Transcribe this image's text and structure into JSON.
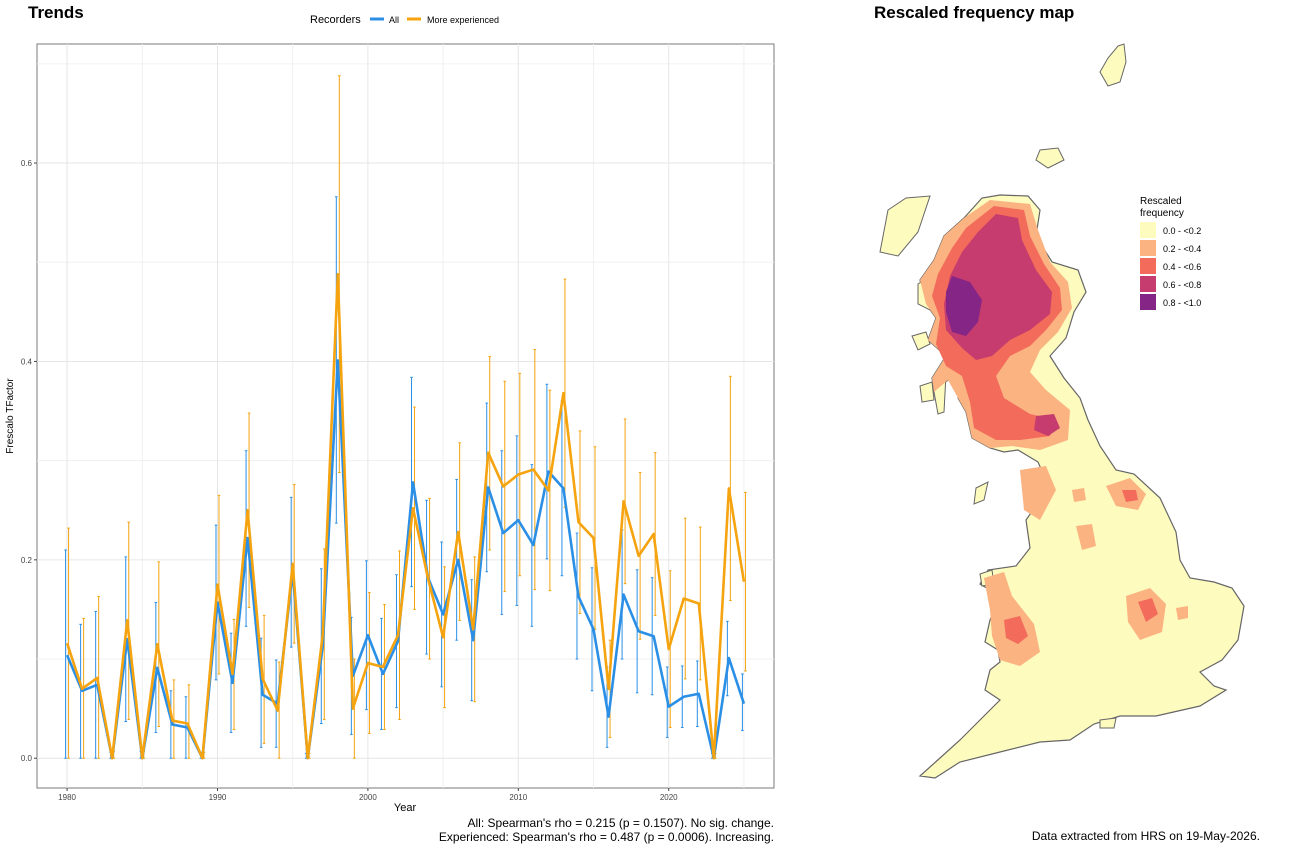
{
  "trends_title": "Trends",
  "map_title": "Rescaled frequency map",
  "notes": {
    "all": "All: Spearman's rho = 0.215 (p = 0.1507). No sig. change.",
    "experienced": "Experienced: Spearman's rho = 0.487 (p = 0.0006). Increasing.",
    "extracted": "Data extracted from HRS on 19-May-2026."
  },
  "map_legend": {
    "title_line1": "Rescaled",
    "title_line2": "frequency",
    "bins": [
      {
        "label": "0.0 - <0.2",
        "color": "#FEFBBF"
      },
      {
        "label": "0.2 - <0.4",
        "color": "#FBB381"
      },
      {
        "label": "0.4 - <0.6",
        "color": "#F26B5B"
      },
      {
        "label": "0.6 - <0.8",
        "color": "#C63C6E"
      },
      {
        "label": "0.8 - <1.0",
        "color": "#852586"
      }
    ]
  },
  "chart_data": {
    "type": "line",
    "title": "Trends",
    "xlabel": "Year",
    "ylabel": "Frescalo TFactor",
    "xlim": [
      1978,
      2027
    ],
    "ylim": [
      -0.03,
      0.72
    ],
    "xticks": [
      1980,
      1990,
      2000,
      2010,
      2020
    ],
    "yticks": [
      0.0,
      0.2,
      0.4,
      0.6
    ],
    "ytick_labels": [
      "0.0",
      "0.2",
      "0.4",
      "0.6"
    ],
    "grid": true,
    "legend_title": "Recorders",
    "legend_position": "top",
    "x": [
      1980,
      1981,
      1982,
      1983,
      1984,
      1985,
      1986,
      1987,
      1988,
      1989,
      1990,
      1991,
      1992,
      1993,
      1994,
      1995,
      1996,
      1997,
      1998,
      1999,
      2000,
      2001,
      2002,
      2003,
      2004,
      2005,
      2006,
      2007,
      2008,
      2009,
      2010,
      2011,
      2012,
      2013,
      2014,
      2015,
      2016,
      2017,
      2018,
      2019,
      2020,
      2021,
      2022,
      2023,
      2024,
      2025
    ],
    "series": [
      {
        "name": "All",
        "color": "#2B8FE6",
        "values": [
          0.104,
          0.068,
          0.074,
          0.0,
          0.12,
          0.0,
          0.091,
          0.034,
          0.031,
          0.0,
          0.157,
          0.076,
          0.222,
          0.064,
          0.055,
          0.188,
          0.0,
          0.113,
          0.401,
          0.083,
          0.124,
          0.085,
          0.118,
          0.278,
          0.182,
          0.145,
          0.2,
          0.119,
          0.273,
          0.227,
          0.24,
          0.215,
          0.289,
          0.272,
          0.163,
          0.13,
          0.042,
          0.165,
          0.128,
          0.123,
          0.052,
          0.062,
          0.065,
          0.0,
          0.101,
          0.055
        ],
        "upper": [
          0.21,
          0.135,
          0.148,
          0.006,
          0.203,
          0.007,
          0.157,
          0.068,
          0.062,
          0.006,
          0.235,
          0.126,
          0.31,
          0.121,
          0.099,
          0.263,
          0.005,
          0.191,
          0.566,
          0.142,
          0.199,
          0.141,
          0.185,
          0.384,
          0.26,
          0.218,
          0.281,
          0.18,
          0.358,
          0.31,
          0.325,
          0.296,
          0.377,
          0.36,
          0.227,
          0.192,
          0.092,
          0.23,
          0.19,
          0.182,
          0.092,
          0.093,
          0.098,
          0.005,
          0.138,
          0.085
        ],
        "lower": [
          0.0,
          0.0,
          0.0,
          0.0,
          0.037,
          0.0,
          0.026,
          0.0,
          0.0,
          0.0,
          0.079,
          0.026,
          0.133,
          0.011,
          0.011,
          0.112,
          0.0,
          0.035,
          0.237,
          0.024,
          0.049,
          0.029,
          0.051,
          0.173,
          0.105,
          0.072,
          0.119,
          0.058,
          0.188,
          0.145,
          0.154,
          0.133,
          0.201,
          0.184,
          0.1,
          0.068,
          0.011,
          0.1,
          0.066,
          0.064,
          0.021,
          0.031,
          0.032,
          0.0,
          0.063,
          0.028
        ]
      },
      {
        "name": "More experienced",
        "color": "#F5A30F",
        "values": [
          0.116,
          0.07,
          0.081,
          0.0,
          0.139,
          0.0,
          0.115,
          0.038,
          0.035,
          0.0,
          0.175,
          0.085,
          0.25,
          0.08,
          0.048,
          0.196,
          0.0,
          0.125,
          0.488,
          0.05,
          0.096,
          0.092,
          0.124,
          0.252,
          0.181,
          0.122,
          0.228,
          0.13,
          0.308,
          0.274,
          0.286,
          0.291,
          0.27,
          0.368,
          0.238,
          0.222,
          0.07,
          0.259,
          0.204,
          0.226,
          0.11,
          0.161,
          0.156,
          0.0,
          0.272,
          0.178
        ],
        "upper": [
          0.232,
          0.141,
          0.163,
          0.007,
          0.238,
          0.007,
          0.198,
          0.079,
          0.074,
          0.006,
          0.265,
          0.14,
          0.348,
          0.144,
          0.097,
          0.276,
          0.005,
          0.211,
          0.688,
          0.1,
          0.167,
          0.155,
          0.209,
          0.354,
          0.262,
          0.193,
          0.318,
          0.203,
          0.405,
          0.38,
          0.388,
          0.412,
          0.371,
          0.483,
          0.33,
          0.314,
          0.119,
          0.342,
          0.288,
          0.308,
          0.189,
          0.242,
          0.233,
          0.005,
          0.385,
          0.268
        ],
        "lower": [
          0.0,
          0.0,
          0.0,
          0.0,
          0.039,
          0.0,
          0.032,
          0.0,
          0.0,
          0.0,
          0.085,
          0.029,
          0.152,
          0.015,
          0.0,
          0.116,
          0.0,
          0.039,
          0.288,
          0.0,
          0.025,
          0.029,
          0.039,
          0.15,
          0.1,
          0.051,
          0.139,
          0.057,
          0.21,
          0.168,
          0.184,
          0.17,
          0.169,
          0.253,
          0.146,
          0.13,
          0.021,
          0.176,
          0.12,
          0.144,
          0.031,
          0.08,
          0.079,
          0.0,
          0.159,
          0.088
        ]
      }
    ]
  }
}
